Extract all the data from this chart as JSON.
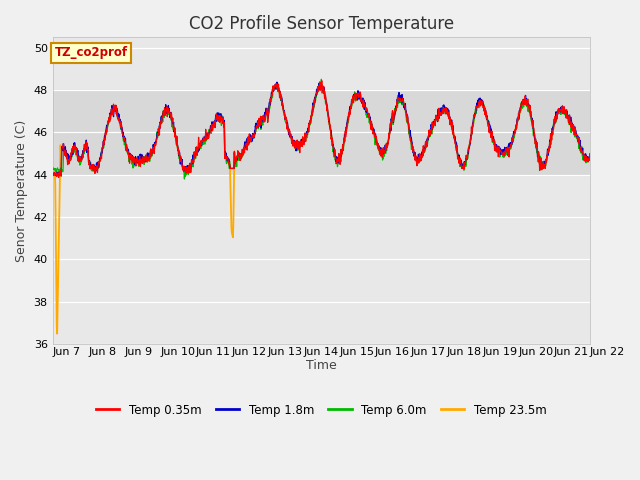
{
  "title": "CO2 Profile Sensor Temperature",
  "ylabel": "Senor Temperature (C)",
  "xlabel": "Time",
  "annotation_text": "TZ_co2prof",
  "annotation_color": "#cc0000",
  "annotation_bg": "#ffffcc",
  "annotation_border": "#cc8800",
  "ylim": [
    36,
    50.5
  ],
  "xlim_days": [
    7,
    22
  ],
  "yticks": [
    36,
    38,
    40,
    42,
    44,
    46,
    48,
    50
  ],
  "xtick_labels": [
    "Jun 7",
    "Jun 8",
    "Jun 9",
    "Jun 10",
    "Jun 11",
    "Jun 12",
    "Jun 13",
    "Jun 14",
    "Jun 15",
    "Jun 16",
    "Jun 17",
    "Jun 18",
    "Jun 19",
    "Jun 20",
    "Jun 21",
    "Jun 22"
  ],
  "band_y1": 44,
  "band_y2": 48,
  "band_color": "#e8e8e8",
  "legend_labels": [
    "Temp 0.35m",
    "Temp 1.8m",
    "Temp 6.0m",
    "Temp 23.5m"
  ],
  "legend_colors": [
    "#ff0000",
    "#0000cc",
    "#00bb00",
    "#ffaa00"
  ],
  "fig_facecolor": "#f0f0f0",
  "ax_facecolor": "#e8e8e8",
  "title_fontsize": 12,
  "axis_label_fontsize": 9,
  "tick_fontsize": 8
}
